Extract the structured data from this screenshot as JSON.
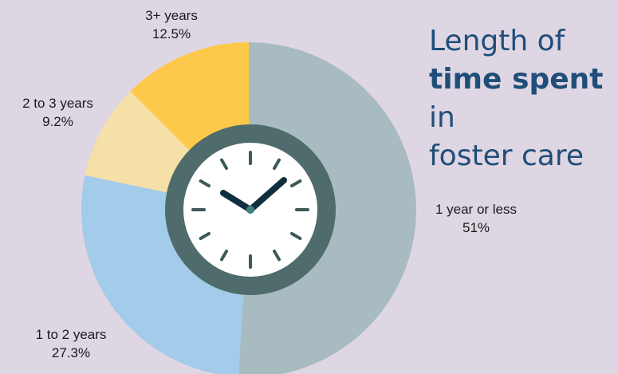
{
  "title": {
    "line1": "Length of",
    "bold": "time spent",
    "after_bold": " in",
    "line3": "foster care"
  },
  "colors": {
    "background": "#dfd6e3",
    "title": "#1f4e79",
    "clock_ring": "#4f6b6b",
    "clock_face": "#ffffff",
    "clock_hands": "#0f2f3f",
    "clock_center": "#3f7f7f",
    "clock_ticks": "#3d5a5a"
  },
  "chart_data": {
    "type": "pie",
    "categories": [
      "1 year or less",
      "1 to 2 years",
      "2 to 3 years",
      "3+ years"
    ],
    "values": [
      51,
      27.3,
      9.2,
      12.5
    ],
    "value_labels": [
      "51%",
      "27.3%",
      "9.2%",
      "12.5%"
    ],
    "colors": [
      "#a7bbc0",
      "#a3cbea",
      "#f5e0a8",
      "#fec94b"
    ],
    "center_icon": "clock-icon"
  }
}
